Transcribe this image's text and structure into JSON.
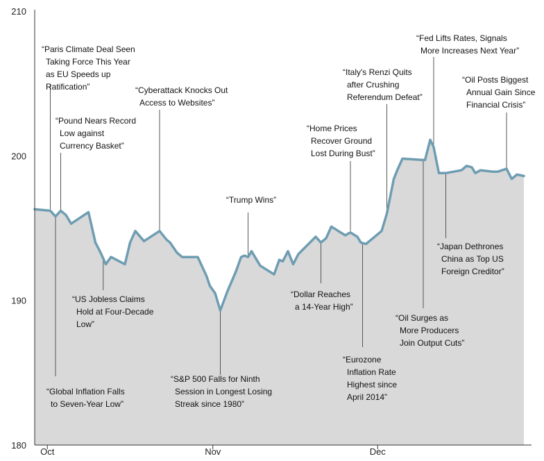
{
  "chart_data": {
    "type": "area",
    "x_tick_labels": [
      "Oct",
      "Nov",
      "Dec"
    ],
    "y_tick_labels": [
      "180",
      "190",
      "200",
      "210"
    ],
    "ylim": [
      180,
      210
    ],
    "grid": false,
    "colors": {
      "line": "#6e9db2",
      "fill": "#d9d9d9",
      "annotation_line": "#555555",
      "axis": "#333333"
    },
    "series": [
      {
        "values": [
          [
            0,
            196.3
          ],
          [
            9,
            196.2
          ],
          [
            12,
            195.8
          ],
          [
            15,
            196.2
          ],
          [
            18,
            195.9
          ],
          [
            21,
            195.3
          ],
          [
            31,
            196.1
          ],
          [
            35,
            194.0
          ],
          [
            38,
            193.3
          ],
          [
            41,
            192.5
          ],
          [
            44,
            193.0
          ],
          [
            52,
            192.5
          ],
          [
            55,
            194.0
          ],
          [
            58,
            194.8
          ],
          [
            63,
            194.1
          ],
          [
            72,
            194.8
          ],
          [
            76,
            194.2
          ],
          [
            78,
            194.0
          ],
          [
            82,
            193.3
          ],
          [
            85,
            193.0
          ],
          [
            94,
            193.0
          ],
          [
            99,
            191.7
          ],
          [
            101,
            191.0
          ],
          [
            104,
            190.5
          ],
          [
            107,
            189.3
          ],
          [
            111,
            190.6
          ],
          [
            116,
            192.0
          ],
          [
            119,
            193.0
          ],
          [
            121,
            193.1
          ],
          [
            123,
            193.0
          ],
          [
            125,
            193.4
          ],
          [
            130,
            192.4
          ],
          [
            138,
            191.8
          ],
          [
            141,
            192.8
          ],
          [
            143,
            192.7
          ],
          [
            146,
            193.4
          ],
          [
            149,
            192.5
          ],
          [
            152,
            193.2
          ],
          [
            157,
            193.8
          ],
          [
            162,
            194.4
          ],
          [
            165,
            194.0
          ],
          [
            168,
            194.3
          ],
          [
            171,
            195.1
          ],
          [
            175,
            194.8
          ],
          [
            179,
            194.5
          ],
          [
            182,
            194.7
          ],
          [
            186,
            194.4
          ],
          [
            188,
            194.0
          ],
          [
            191,
            193.9
          ],
          [
            200,
            194.8
          ],
          [
            203,
            196.0
          ],
          [
            207,
            198.4
          ],
          [
            209,
            199.0
          ],
          [
            212,
            199.8
          ],
          [
            225,
            199.7
          ],
          [
            228,
            201.1
          ],
          [
            230,
            200.6
          ],
          [
            233,
            198.8
          ],
          [
            237,
            198.8
          ],
          [
            246,
            199.0
          ],
          [
            249,
            199.3
          ],
          [
            252,
            199.2
          ],
          [
            254,
            198.8
          ],
          [
            257,
            199.0
          ],
          [
            264,
            198.9
          ],
          [
            267,
            198.9
          ],
          [
            272,
            199.1
          ],
          [
            275,
            198.4
          ],
          [
            278,
            198.7
          ],
          [
            282,
            198.6
          ]
        ]
      }
    ],
    "x_ticks": [
      [
        7.3,
        "Oct"
      ],
      [
        102.7,
        "Nov"
      ],
      [
        197.7,
        "Dec"
      ]
    ],
    "annotations": [
      {
        "x": 9.0,
        "y": 196.3,
        "lines": [
          "“Paris Climate Deal Seen",
          "Taking Force This Year",
          "as EU Speeds up",
          "Ratification”"
        ]
      },
      {
        "x": 15.0,
        "y": 196.2,
        "lines": [
          "“Pound Nears Record",
          "Low against",
          "Currency Basket”"
        ]
      },
      {
        "x": 12.0,
        "y": 195.8,
        "lines": [
          "“Global Inflation Falls",
          "to Seven-Year Low”"
        ]
      },
      {
        "x": 39.5,
        "y": 192.9,
        "lines": [
          "“US Jobless Claims",
          "Hold at Four-Decade",
          "Low”"
        ]
      },
      {
        "x": 72.0,
        "y": 194.8,
        "lines": [
          "“Cyberattack Knocks Out",
          "Access to Websites”"
        ]
      },
      {
        "x": 107.0,
        "y": 189.3,
        "lines": [
          "“S&P 500 Falls for Ninth",
          "Session in Longest Losing",
          "Streak since 1980”"
        ]
      },
      {
        "x": 123.0,
        "y": 193.1,
        "lines": [
          "“Trump Wins”"
        ]
      },
      {
        "x": 165.0,
        "y": 194.0,
        "lines": [
          "“Dollar Reaches",
          "a 14-Year High”"
        ]
      },
      {
        "x": 182.0,
        "y": 194.8,
        "lines": [
          "“Home Prices",
          "Recover Ground",
          "Lost During Bust”"
        ]
      },
      {
        "x": 189.0,
        "y": 194.0,
        "lines": [
          "“Eurozone",
          "Inflation Rate",
          "Highest since",
          "April 2014”"
        ]
      },
      {
        "x": 203.0,
        "y": 196.0,
        "lines": [
          "“Italy's Renzi Quits",
          "after Crushing",
          "Referendum Defeat”"
        ]
      },
      {
        "x": 224.0,
        "y": 199.7,
        "lines": [
          "“Oil Surges as",
          "More Producers",
          "Join Output Cuts”"
        ]
      },
      {
        "x": 230.0,
        "y": 200.6,
        "lines": [
          "“Fed Lifts Rates, Signals",
          "More Increases Next Year”"
        ]
      },
      {
        "x": 237.0,
        "y": 198.8,
        "lines": [
          "“Japan Dethrones",
          "China as Top US",
          "Foreign Creditor”"
        ]
      },
      {
        "x": 272.0,
        "y": 199.1,
        "lines": [
          "“Oil Posts Biggest",
          "Annual Gain Since",
          "Financial Crisis”"
        ]
      }
    ]
  }
}
